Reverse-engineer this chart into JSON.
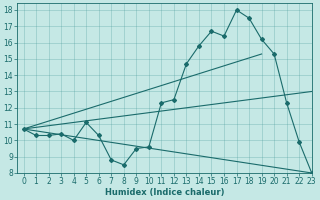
{
  "xlabel": "Humidex (Indice chaleur)",
  "ylabel": "",
  "xlim": [
    -0.5,
    23
  ],
  "ylim": [
    8,
    18.4
  ],
  "yticks": [
    8,
    9,
    10,
    11,
    12,
    13,
    14,
    15,
    16,
    17,
    18
  ],
  "xticks": [
    0,
    1,
    2,
    3,
    4,
    5,
    6,
    7,
    8,
    9,
    10,
    11,
    12,
    13,
    14,
    15,
    16,
    17,
    18,
    19,
    20,
    21,
    22,
    23
  ],
  "background_color": "#c5e8e5",
  "line_color": "#1a6b6b",
  "figsize": [
    3.2,
    2.0
  ],
  "dpi": 100,
  "curve1_x": [
    0,
    1,
    2,
    3,
    4,
    5,
    6,
    7,
    8,
    9,
    10,
    11,
    12,
    13,
    14,
    15,
    16,
    17,
    18,
    19,
    20,
    21,
    22,
    23
  ],
  "curve1_y": [
    10.7,
    10.3,
    10.3,
    10.4,
    10.0,
    11.1,
    10.3,
    8.8,
    8.5,
    9.5,
    9.6,
    12.3,
    12.5,
    14.7,
    15.8,
    16.7,
    16.4,
    18.0,
    17.5,
    16.2,
    15.3,
    12.3,
    9.9,
    8.0
  ],
  "curve2_x": [
    0,
    23
  ],
  "curve2_y": [
    10.7,
    8.0
  ],
  "curve3_x": [
    0,
    19
  ],
  "curve3_y": [
    10.7,
    15.3
  ],
  "curve4_x": [
    0,
    23
  ],
  "curve4_y": [
    10.7,
    13.0
  ],
  "grid_color": "#4a9a9a",
  "grid_alpha": 0.5,
  "grid_linewidth": 0.4,
  "tick_labelsize": 5.5,
  "xlabel_fontsize": 6.0,
  "marker": "D",
  "markersize": 2.0,
  "linewidth": 0.8
}
